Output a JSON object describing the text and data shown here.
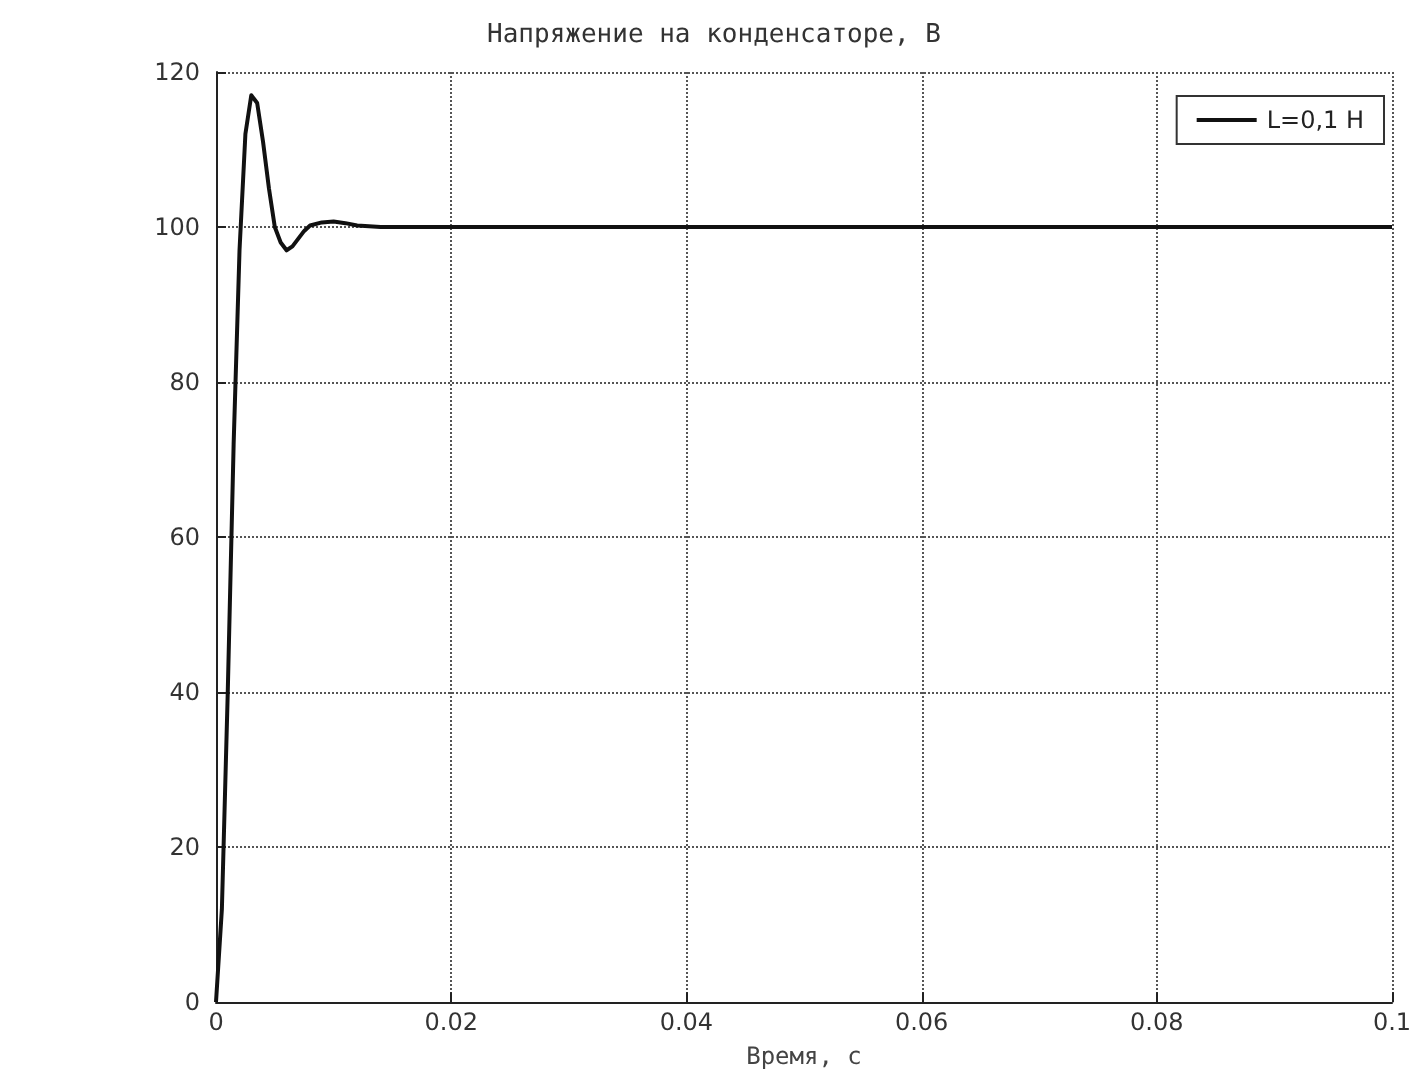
{
  "chart_data": {
    "type": "line",
    "title": "Напряжение на конденсаторе, В",
    "xlabel": "Время, с",
    "x": [
      0,
      0.0005,
      0.001,
      0.0015,
      0.002,
      0.0025,
      0.003,
      0.0035,
      0.004,
      0.0045,
      0.005,
      0.0055,
      0.006,
      0.0065,
      0.007,
      0.0075,
      0.008,
      0.009,
      0.01,
      0.011,
      0.012,
      0.014,
      0.02,
      0.04,
      0.06,
      0.08,
      0.1
    ],
    "series": [
      {
        "name": "L=0,1 H",
        "color": "#111111",
        "values": [
          0,
          12,
          40,
          72,
          97,
          112,
          117,
          116,
          111,
          105,
          100,
          98,
          97,
          97.5,
          98.5,
          99.5,
          100.2,
          100.6,
          100.7,
          100.5,
          100.2,
          100,
          100,
          100,
          100,
          100,
          100
        ]
      }
    ],
    "xlim": [
      0,
      0.1
    ],
    "xticks": [
      0,
      0.02,
      0.04,
      0.06,
      0.08,
      0.1
    ],
    "ylim": [
      0,
      120
    ],
    "yticks": [
      0,
      20,
      40,
      60,
      80,
      100,
      120
    ],
    "grid": true,
    "legend": "top right",
    "line_style": "solid",
    "marker": "none"
  }
}
